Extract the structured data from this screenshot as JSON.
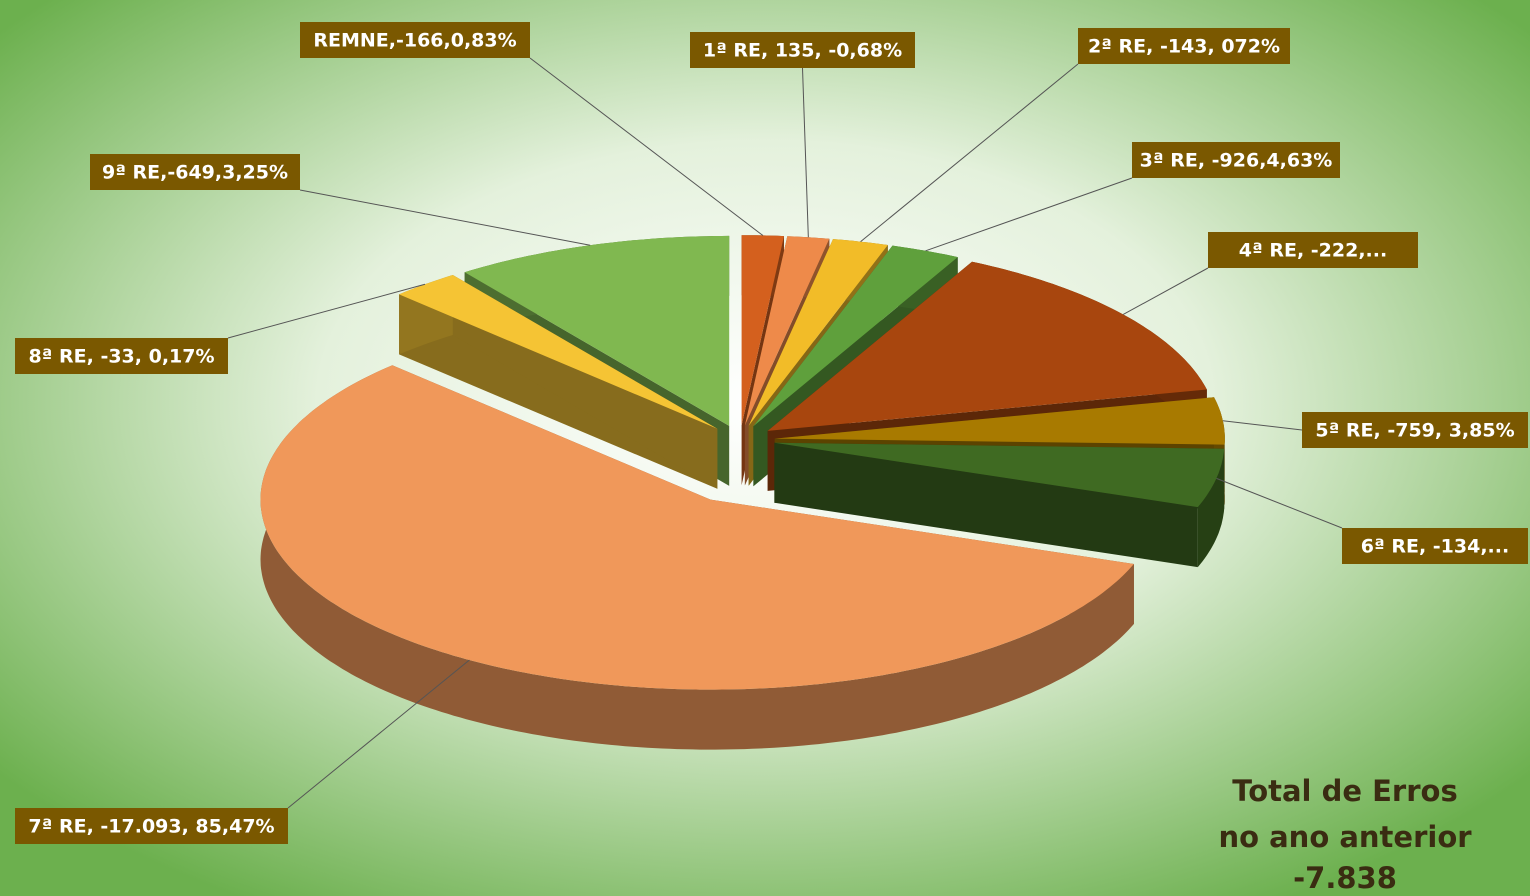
{
  "chart_data": {
    "type": "pie3d",
    "labels": [
      "REMNE,-166,0,83%",
      "1ª RE, 135, -0,68%",
      "2ª RE, -143, 072%",
      "3ª RE, -926,4,63%",
      "4ª RE, -222,...",
      "5ª RE, -759, 3,85%",
      "6ª RE, -134,...",
      "7ª RE, -17.093, 85,47%",
      "8ª RE, -33, 0,17%",
      "9ª RE,-649,3,25%"
    ],
    "values": [
      1.5,
      1.5,
      2,
      2.5,
      14,
      4,
      5,
      57,
      2.5,
      10
    ],
    "colors": [
      "#d4601e",
      "#ee8a4a",
      "#f2bc28",
      "#5fa03c",
      "#a8460e",
      "#a87a00",
      "#3f6a22",
      "#f0985a",
      "#f5c434",
      "#80b850"
    ],
    "annotation": [
      "Total de Erros",
      "no ano anterior",
      "-7.838"
    ]
  }
}
